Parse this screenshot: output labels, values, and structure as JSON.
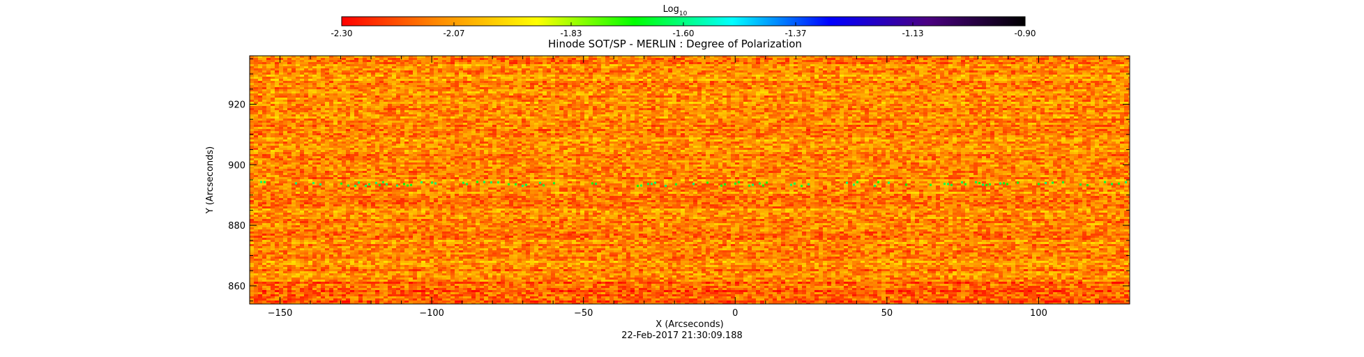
{
  "colorbar": {
    "label": "Log",
    "label_sub": "10",
    "range": [
      -2.3,
      -0.9
    ],
    "ticks": [
      "-2.30",
      "-2.07",
      "-1.83",
      "-1.60",
      "-1.37",
      "-1.13",
      "-0.90"
    ],
    "tick_values": [
      -2.3,
      -2.07,
      -1.83,
      -1.6,
      -1.37,
      -1.13,
      -0.9
    ],
    "colors": [
      "#ff0000",
      "#ff8c00",
      "#ffff00",
      "#00ff00",
      "#00ffff",
      "#0000ff",
      "#4b0082",
      "#000000"
    ]
  },
  "chart_data": {
    "type": "heatmap",
    "title": "Hinode SOT/SP - MERLIN : Degree of Polarization",
    "xlabel": "X (Arcseconds)",
    "ylabel": "Y (Arcseconds)",
    "xlim": [
      -160,
      130
    ],
    "ylim": [
      854,
      936
    ],
    "x_ticks": [
      -150,
      -100,
      -50,
      0,
      50,
      100
    ],
    "y_ticks": [
      860,
      880,
      900,
      920
    ],
    "x_tick_labels": [
      "−150",
      "−100",
      "−50",
      "0",
      "50",
      "100"
    ],
    "y_tick_labels": [
      "860",
      "880",
      "900",
      "920"
    ],
    "value_range": [
      -2.3,
      -0.9
    ],
    "dominant_value": -2.1,
    "features": [
      {
        "label": "green streak",
        "y": 894,
        "x_range": [
          -160,
          130
        ],
        "value": -1.65
      }
    ]
  },
  "footer": {
    "timestamp": "22-Feb-2017 21:30:09.188"
  }
}
